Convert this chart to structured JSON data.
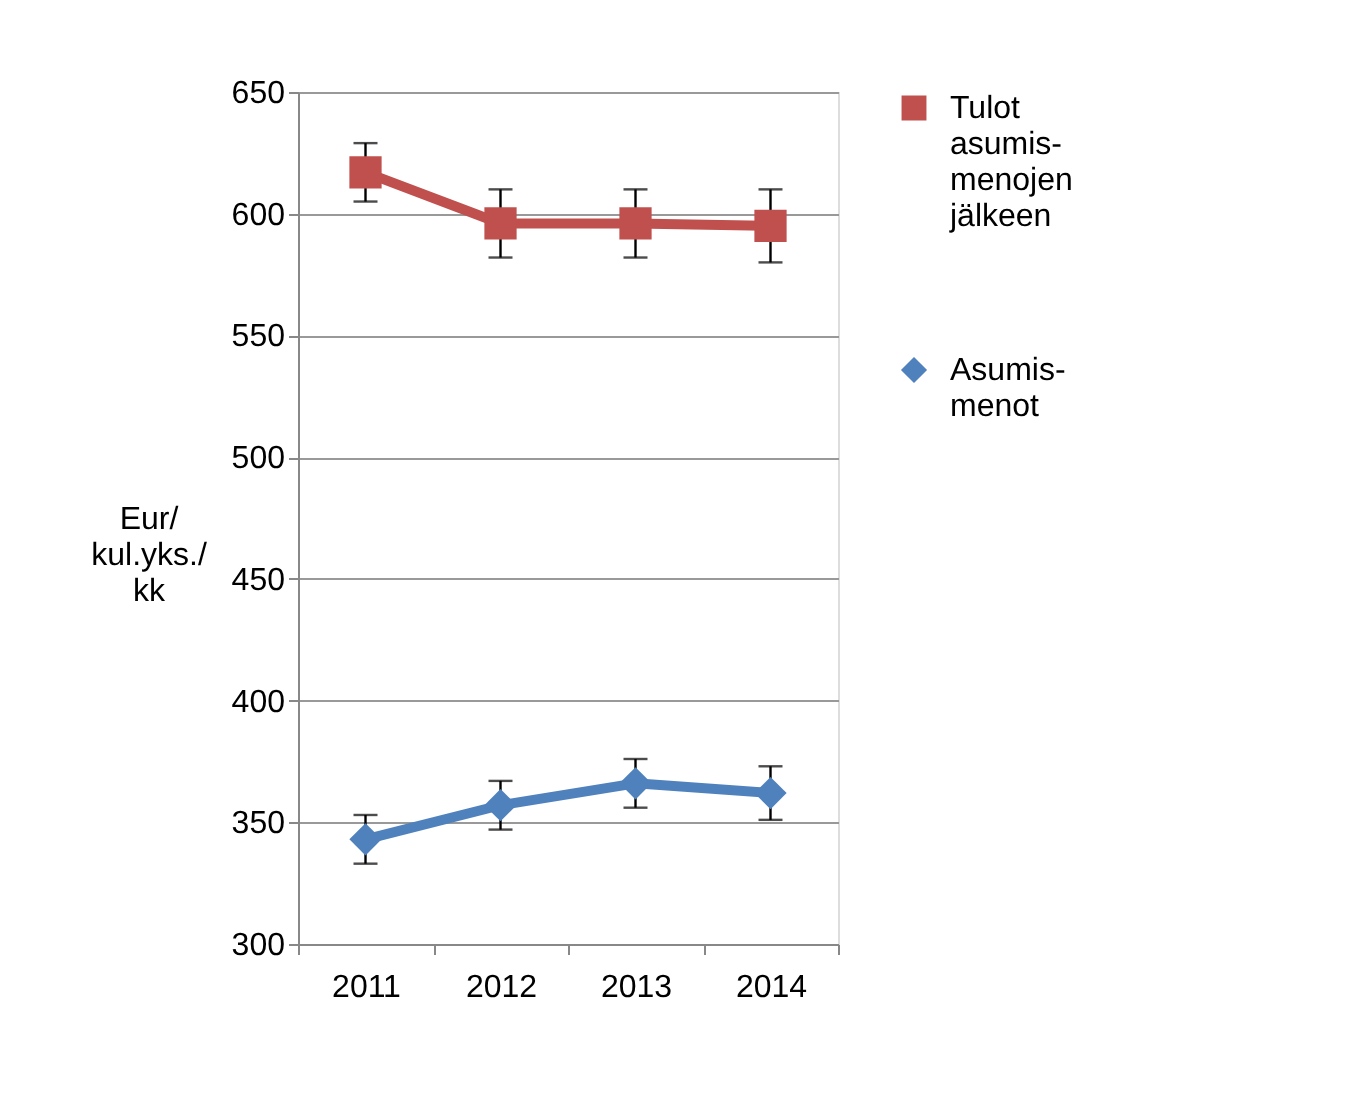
{
  "chart_data": {
    "type": "line",
    "ylabel": "Eur/kul.yks./kk",
    "categories": [
      "2011",
      "2012",
      "2013",
      "2014"
    ],
    "series": [
      {
        "name": "Tulot asumis-menojen jälkeen",
        "color": "#c0504d",
        "marker": "square",
        "values": [
          617,
          596,
          596,
          595
        ],
        "errors": [
          12,
          14,
          14,
          15
        ]
      },
      {
        "name": "Asumis-menot",
        "color": "#4f81bd",
        "marker": "diamond",
        "values": [
          343,
          357,
          366,
          362
        ],
        "errors": [
          10,
          10,
          10,
          11
        ]
      }
    ],
    "ylim": [
      300,
      650
    ],
    "yticks": [
      300,
      350,
      400,
      450,
      500,
      550,
      600,
      650
    ],
    "grid": "y",
    "legend": "right"
  }
}
